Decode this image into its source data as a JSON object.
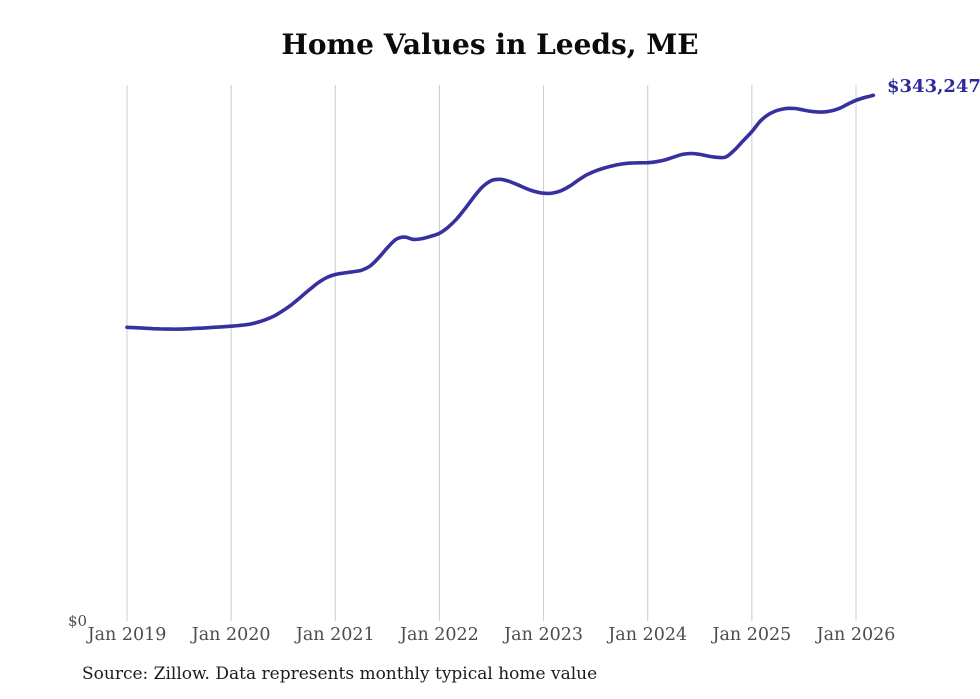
{
  "header": {
    "title": "Home Values in Leeds, ME"
  },
  "axes": {
    "y_zero_label": "$0"
  },
  "annotation": {
    "end_value_label": "$343,247"
  },
  "footer": {
    "source_note": "Source: Zillow. Data represents monthly typical home value"
  },
  "colors": {
    "line": "#36319e",
    "end_label_text": "#2e2a9d",
    "gridline": "#cccccc",
    "tick_label": "#4d4d4d",
    "title_text": "#0b0b0b",
    "source_text": "#1c1c1c",
    "background": "#ffffff"
  },
  "chart_data": {
    "type": "line",
    "title": "Home Values in Leeds, ME",
    "series_name": "Monthly typical home value",
    "xlabel": "",
    "ylabel": "",
    "ylim": [
      0,
      350000
    ],
    "grid": "vertical-at-each-january",
    "legend_position": "none",
    "last_value_annotation": "$343,247",
    "x_tick_labels": [
      "Jan 2019",
      "Jan 2020",
      "Jan 2021",
      "Jan 2022",
      "Jan 2023",
      "Jan 2024",
      "Jan 2025",
      "Jan 2026"
    ],
    "y_tick_labels": [
      "$0"
    ],
    "x": [
      "2019-01",
      "2019-02",
      "2019-03",
      "2019-04",
      "2019-05",
      "2019-06",
      "2019-07",
      "2019-08",
      "2019-09",
      "2019-10",
      "2019-11",
      "2019-12",
      "2020-01",
      "2020-02",
      "2020-03",
      "2020-04",
      "2020-05",
      "2020-06",
      "2020-07",
      "2020-08",
      "2020-09",
      "2020-10",
      "2020-11",
      "2020-12",
      "2021-01",
      "2021-02",
      "2021-03",
      "2021-04",
      "2021-05",
      "2021-06",
      "2021-07",
      "2021-08",
      "2021-09",
      "2021-10",
      "2021-11",
      "2021-12",
      "2022-01",
      "2022-02",
      "2022-03",
      "2022-04",
      "2022-05",
      "2022-06",
      "2022-07",
      "2022-08",
      "2022-09",
      "2022-10",
      "2022-11",
      "2022-12",
      "2023-01",
      "2023-02",
      "2023-03",
      "2023-04",
      "2023-05",
      "2023-06",
      "2023-07",
      "2023-08",
      "2023-09",
      "2023-10",
      "2023-11",
      "2023-12",
      "2024-01",
      "2024-02",
      "2024-03",
      "2024-04",
      "2024-05",
      "2024-06",
      "2024-07",
      "2024-08",
      "2024-09",
      "2024-10",
      "2024-11",
      "2024-12",
      "2025-01",
      "2025-02",
      "2025-03",
      "2025-04",
      "2025-05",
      "2025-06",
      "2025-07",
      "2025-08",
      "2025-09",
      "2025-10",
      "2025-11",
      "2025-12",
      "2026-01",
      "2026-02",
      "2026-03"
    ],
    "values": [
      191500,
      191200,
      190900,
      190600,
      190400,
      190300,
      190300,
      190500,
      190800,
      191100,
      191500,
      191800,
      192200,
      192700,
      193400,
      194700,
      196500,
      199000,
      202500,
      206500,
      211200,
      216000,
      220500,
      224000,
      226000,
      227000,
      227800,
      228800,
      231500,
      237000,
      243500,
      249000,
      250500,
      249000,
      249500,
      251000,
      253000,
      257000,
      262500,
      269500,
      277000,
      283500,
      287500,
      288300,
      287000,
      284800,
      282300,
      280300,
      279200,
      279300,
      280800,
      283800,
      287800,
      291300,
      293800,
      295700,
      297200,
      298300,
      298900,
      299100,
      299200,
      299800,
      301000,
      302800,
      304600,
      305200,
      304600,
      303500,
      302700,
      302900,
      307500,
      313500,
      319500,
      326500,
      331000,
      333500,
      334700,
      334600,
      333600,
      332600,
      332300,
      332900,
      334500,
      337300,
      340000,
      341800,
      343247
    ]
  }
}
